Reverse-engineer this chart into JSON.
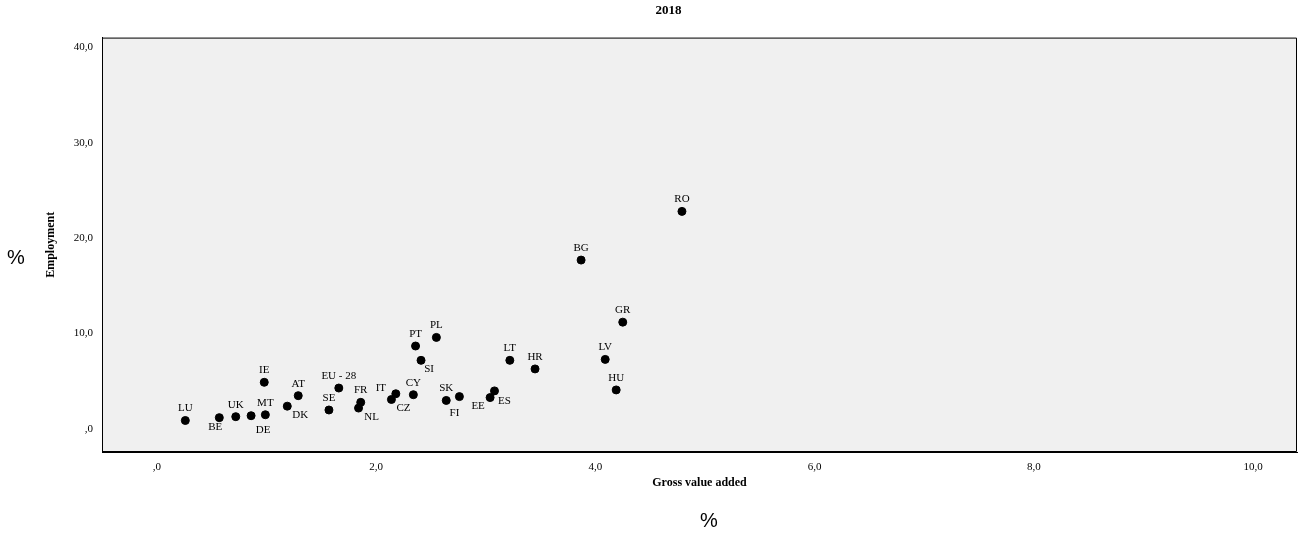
{
  "chart_data": {
    "type": "scatter",
    "title": "2018",
    "xlabel": "Gross value added",
    "ylabel": "Employment",
    "x": [
      0.26,
      0.57,
      0.72,
      0.86,
      0.99,
      1.19,
      0.98,
      1.29,
      1.66,
      1.57,
      1.86,
      1.84,
      2.14,
      2.18,
      2.34,
      2.41,
      2.36,
      2.55,
      2.64,
      2.76,
      3.04,
      3.08,
      3.22,
      3.45,
      4.09,
      4.19,
      4.25,
      3.87,
      4.79
    ],
    "values": [
      0.9,
      1.2,
      1.3,
      1.4,
      1.5,
      2.4,
      4.9,
      3.5,
      4.3,
      2.0,
      2.8,
      2.2,
      3.1,
      3.7,
      3.6,
      7.2,
      8.7,
      9.6,
      3.0,
      3.4,
      3.3,
      4.0,
      7.2,
      6.3,
      7.3,
      4.1,
      11.2,
      17.7,
      22.8
    ],
    "color": "#000000",
    "marker": "circle",
    "grid": false,
    "legend": false,
    "xlim": [
      -0.5,
      10.4
    ],
    "ylim": [
      -2.4,
      41
    ],
    "xticks": [
      {
        "value": 0,
        "label": ",0"
      },
      {
        "value": 2,
        "label": "2,0"
      },
      {
        "value": 4,
        "label": "4,0"
      },
      {
        "value": 6,
        "label": "6,0"
      },
      {
        "value": 8,
        "label": "8,0"
      },
      {
        "value": 10,
        "label": "10,0"
      }
    ],
    "yticks": [
      {
        "value": 0,
        "label": ",0"
      },
      {
        "value": 10,
        "label": "10,0"
      },
      {
        "value": 20,
        "label": "20,0"
      },
      {
        "value": 30,
        "label": "30,0"
      },
      {
        "value": 40,
        "label": "40,0"
      }
    ],
    "annotations": [
      {
        "text": "LU",
        "x": 0.26,
        "y": 0.9
      },
      {
        "text": "BE",
        "x": 0.57,
        "y": 1.2
      },
      {
        "text": "UK",
        "x": 0.72,
        "y": 1.3
      },
      {
        "text": "DE",
        "x": 0.86,
        "y": 1.4
      },
      {
        "text": "MT",
        "x": 0.99,
        "y": 1.5
      },
      {
        "text": "DK",
        "x": 1.19,
        "y": 2.4
      },
      {
        "text": "IE",
        "x": 0.98,
        "y": 4.9
      },
      {
        "text": "AT",
        "x": 1.29,
        "y": 3.5
      },
      {
        "text": "EU - 28",
        "x": 1.66,
        "y": 4.3
      },
      {
        "text": "SE",
        "x": 1.57,
        "y": 2.0
      },
      {
        "text": "FR",
        "x": 1.86,
        "y": 2.8
      },
      {
        "text": "NL",
        "x": 1.84,
        "y": 2.2
      },
      {
        "text": "CZ",
        "x": 2.14,
        "y": 3.1
      },
      {
        "text": "IT",
        "x": 2.18,
        "y": 3.7
      },
      {
        "text": "CY",
        "x": 2.34,
        "y": 3.6
      },
      {
        "text": "SI",
        "x": 2.41,
        "y": 7.2
      },
      {
        "text": "PT",
        "x": 2.36,
        "y": 8.7
      },
      {
        "text": "PL",
        "x": 2.55,
        "y": 9.6
      },
      {
        "text": "SK",
        "x": 2.64,
        "y": 3.0
      },
      {
        "text": "FI",
        "x": 2.76,
        "y": 3.4
      },
      {
        "text": "EE",
        "x": 3.04,
        "y": 3.3
      },
      {
        "text": "ES",
        "x": 3.08,
        "y": 4.0
      },
      {
        "text": "LT",
        "x": 3.22,
        "y": 7.2
      },
      {
        "text": "HR",
        "x": 3.45,
        "y": 6.3
      },
      {
        "text": "LV",
        "x": 4.09,
        "y": 7.3
      },
      {
        "text": "HU",
        "x": 4.19,
        "y": 4.1
      },
      {
        "text": "GR",
        "x": 4.25,
        "y": 11.2
      },
      {
        "text": "BG",
        "x": 3.87,
        "y": 17.7
      },
      {
        "text": "RO",
        "x": 4.79,
        "y": 22.8
      },
      "%",
      "%"
    ]
  }
}
